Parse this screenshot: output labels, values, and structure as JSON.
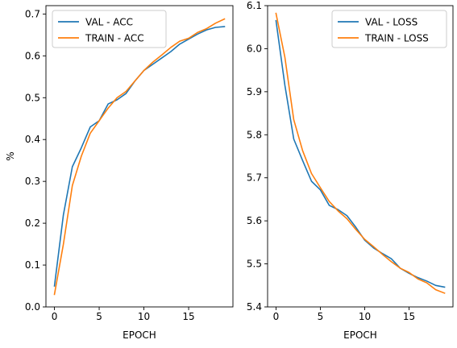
{
  "chart_data": [
    {
      "type": "line",
      "xlabel": "EPOCH",
      "ylabel": "%",
      "xlim": [
        -0.95,
        19.95
      ],
      "ylim": [
        0.0,
        0.72
      ],
      "xticks": [
        0,
        5,
        10,
        15
      ],
      "xtick_labels": [
        "0",
        "5",
        "10",
        "15"
      ],
      "yticks": [
        0.0,
        0.1,
        0.2,
        0.3,
        0.4,
        0.5,
        0.6,
        0.7
      ],
      "ytick_labels": [
        "0.0",
        "0.1",
        "0.2",
        "0.3",
        "0.4",
        "0.5",
        "0.6",
        "0.7"
      ],
      "legend": "top-left",
      "grid": false,
      "x": [
        0,
        1,
        2,
        3,
        4,
        5,
        6,
        7,
        8,
        9,
        10,
        11,
        12,
        13,
        14,
        15,
        16,
        17,
        18,
        19
      ],
      "series": [
        {
          "name": "VAL - ACC",
          "color": "#1f77b4",
          "values": [
            0.05,
            0.22,
            0.335,
            0.38,
            0.43,
            0.445,
            0.485,
            0.495,
            0.51,
            0.54,
            0.565,
            0.58,
            0.595,
            0.61,
            0.628,
            0.64,
            0.652,
            0.662,
            0.668,
            0.67
          ]
        },
        {
          "name": "TRAIN - ACC",
          "color": "#ff7f0e",
          "values": [
            0.03,
            0.15,
            0.29,
            0.36,
            0.415,
            0.445,
            0.475,
            0.5,
            0.515,
            0.54,
            0.565,
            0.585,
            0.602,
            0.62,
            0.635,
            0.642,
            0.656,
            0.665,
            0.678,
            0.688
          ]
        }
      ]
    },
    {
      "type": "line",
      "xlabel": "EPOCH",
      "ylabel": "",
      "xlim": [
        -0.95,
        19.95
      ],
      "ylim": [
        5.4,
        6.1
      ],
      "xticks": [
        0,
        5,
        10,
        15
      ],
      "xtick_labels": [
        "0",
        "5",
        "10",
        "15"
      ],
      "yticks": [
        5.4,
        5.5,
        5.6,
        5.7,
        5.8,
        5.9,
        6.0,
        6.1
      ],
      "ytick_labels": [
        "5.4",
        "5.5",
        "5.6",
        "5.7",
        "5.8",
        "5.9",
        "6.0",
        "6.1"
      ],
      "legend": "top-right",
      "grid": false,
      "x": [
        0,
        1,
        2,
        3,
        4,
        5,
        6,
        7,
        8,
        9,
        10,
        11,
        12,
        13,
        14,
        15,
        16,
        17,
        18,
        19
      ],
      "series": [
        {
          "name": "VAL - LOSS",
          "color": "#1f77b4",
          "values": [
            6.065,
            5.915,
            5.79,
            5.74,
            5.692,
            5.672,
            5.636,
            5.626,
            5.612,
            5.585,
            5.555,
            5.537,
            5.524,
            5.512,
            5.49,
            5.478,
            5.468,
            5.46,
            5.45,
            5.446
          ]
        },
        {
          "name": "TRAIN - LOSS",
          "color": "#ff7f0e",
          "values": [
            6.082,
            5.98,
            5.835,
            5.763,
            5.71,
            5.677,
            5.645,
            5.623,
            5.605,
            5.58,
            5.557,
            5.54,
            5.522,
            5.505,
            5.49,
            5.48,
            5.465,
            5.456,
            5.44,
            5.432
          ]
        }
      ]
    }
  ]
}
